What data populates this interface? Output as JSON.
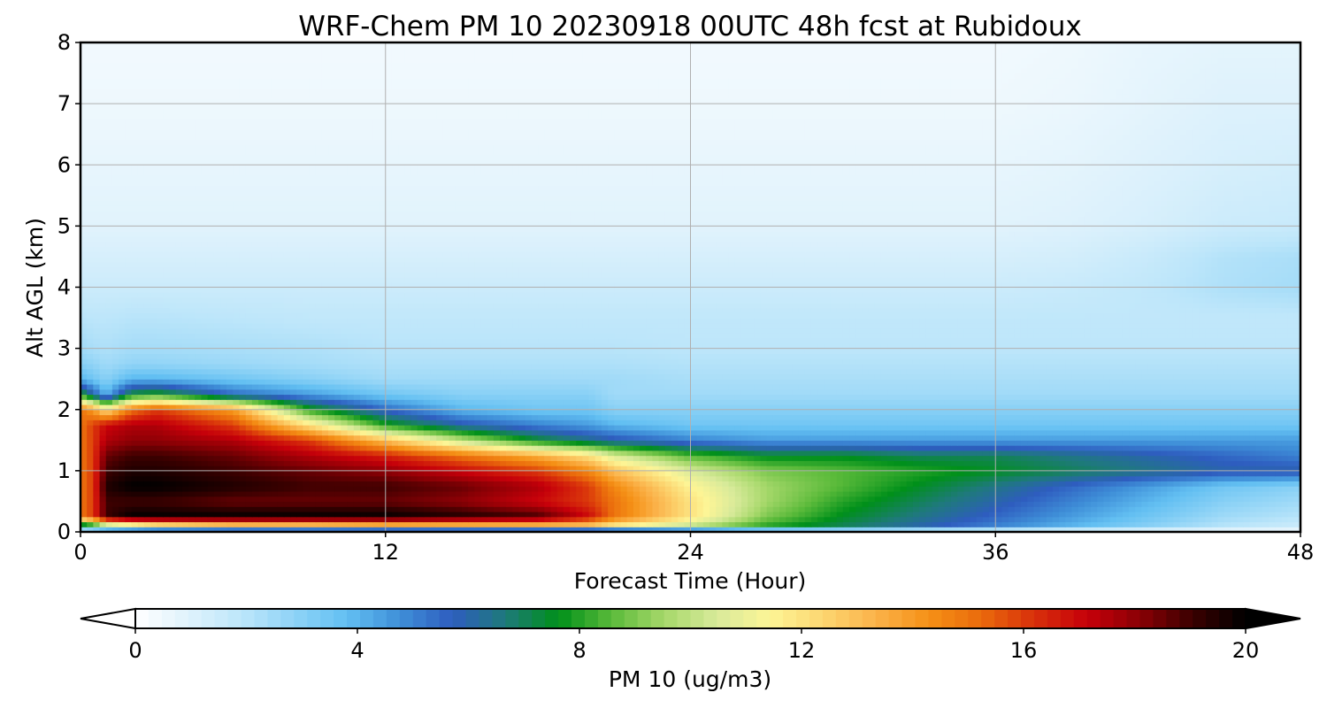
{
  "chart_data": {
    "type": "heatmap",
    "title": "WRF-Chem PM 10  20230918 00UTC 48h fcst at Rubidoux",
    "xlabel": "Forecast Time (Hour)",
    "ylabel": "Alt AGL (km)",
    "xlim": [
      0,
      48
    ],
    "ylim": [
      0,
      8
    ],
    "x_ticks": [
      0,
      12,
      24,
      36,
      48
    ],
    "y_ticks": [
      0,
      1,
      2,
      3,
      4,
      5,
      6,
      7,
      8
    ],
    "grid": true,
    "colorbar": {
      "label": "PM 10  (ug/m3)",
      "range": [
        0,
        20
      ],
      "ticks": [
        0,
        4,
        8,
        12,
        16,
        20
      ],
      "extend": "both",
      "colors": [
        "#ffffff",
        "#dff2fc",
        "#bde6fa",
        "#8fd3f6",
        "#62bff2",
        "#3f8fd8",
        "#2e5dbf",
        "#1e7a7a",
        "#00901a",
        "#5aba3a",
        "#a6d86a",
        "#d8ea9a",
        "#fdf596",
        "#fcd671",
        "#fbb24a",
        "#f59116",
        "#ea6a0c",
        "#d8300b",
        "#c6000a",
        "#8a0005",
        "#3a0000",
        "#000000"
      ]
    },
    "field": {
      "x": [
        0,
        0.5,
        1,
        2,
        3,
        6,
        9,
        12,
        15,
        18,
        20,
        21,
        24,
        27,
        30,
        33,
        36,
        39,
        42,
        45,
        48
      ],
      "y": [
        0,
        0.1,
        0.25,
        0.5,
        0.75,
        1,
        1.25,
        1.5,
        1.75,
        2,
        2.25,
        2.5,
        2.75,
        3,
        3.5,
        4,
        4.5,
        5,
        6,
        7,
        8
      ],
      "values_ug_m3": [
        [
          0.3,
          0.3,
          0.3,
          0.3,
          0.3,
          0.3,
          0.3,
          0.3,
          0.3,
          0.3,
          0.3,
          0.3,
          0.3,
          0.3,
          0.3,
          0.3,
          0.3,
          0.3,
          0.3,
          0.3,
          0.3
        ],
        [
          6,
          7,
          9,
          10,
          11,
          12,
          12,
          12.5,
          12.5,
          12.5,
          12.5,
          11.5,
          10,
          8,
          7,
          6,
          5,
          4,
          3,
          2,
          1.5
        ],
        [
          15,
          16,
          19,
          20,
          20,
          20,
          20,
          20,
          19.5,
          19,
          17,
          15,
          12,
          9,
          7.5,
          6.5,
          5.5,
          4.5,
          3.5,
          2.5,
          2
        ],
        [
          15,
          16,
          19,
          19,
          19,
          18.5,
          18.5,
          18.5,
          18,
          17,
          16,
          15,
          12,
          9.5,
          8,
          7,
          6,
          5,
          4,
          3,
          2.5
        ],
        [
          15,
          16,
          19.5,
          20,
          20,
          19.5,
          19,
          19,
          18.5,
          17.5,
          16,
          14.5,
          11.5,
          9.5,
          8.5,
          7.5,
          6.5,
          5.5,
          4.5,
          3.5,
          3
        ],
        [
          15,
          16,
          19,
          19.5,
          19.5,
          19,
          18.5,
          18,
          17,
          16,
          14.5,
          13,
          10.5,
          9,
          8.5,
          8,
          7.5,
          7,
          6.5,
          6,
          6
        ],
        [
          15,
          16,
          18.5,
          19,
          19,
          18.5,
          17.5,
          16.5,
          15,
          13.5,
          12,
          10.5,
          8.5,
          7.5,
          7.5,
          7,
          7,
          6.5,
          6,
          5.5,
          5
        ],
        [
          15,
          16,
          17.5,
          18,
          18,
          17.5,
          16,
          13,
          10,
          7.5,
          6.5,
          6,
          5,
          4.5,
          4.5,
          4.5,
          4.5,
          4.5,
          4.5,
          4.5,
          4.5
        ],
        [
          15,
          16,
          17,
          17.5,
          17.5,
          16,
          12,
          8,
          6,
          5,
          4.5,
          4,
          3.5,
          3.5,
          3.5,
          3.5,
          3.5,
          3.5,
          3.5,
          3.5,
          3.5
        ],
        [
          15,
          14,
          12,
          15,
          16,
          14,
          8,
          5.5,
          4,
          3.5,
          3.5,
          3,
          3,
          3,
          3,
          3,
          3,
          3,
          3,
          3,
          3
        ],
        [
          8,
          6,
          4,
          7.5,
          8,
          5.5,
          4.5,
          3.5,
          3,
          3,
          3,
          2.5,
          2.5,
          2.5,
          2.5,
          2.5,
          2.5,
          2.5,
          2.5,
          2.5,
          2.5
        ],
        [
          4,
          3.5,
          3,
          4,
          4,
          3.5,
          3,
          2.5,
          2.5,
          2.5,
          2.5,
          2.5,
          2.3,
          2.3,
          2.3,
          2.3,
          2.3,
          2.3,
          2.3,
          2.3,
          2.3
        ],
        [
          3,
          2.8,
          2.5,
          2.8,
          2.8,
          2.6,
          2.4,
          2.2,
          2.2,
          2.2,
          2.2,
          2.2,
          2.1,
          2.1,
          2.1,
          2.1,
          2.1,
          2.1,
          2.1,
          2.1,
          2.1
        ],
        [
          2.5,
          2.3,
          2.2,
          2.4,
          2.4,
          2.3,
          2.2,
          2,
          2,
          2,
          2,
          2,
          1.9,
          1.9,
          1.9,
          1.9,
          1.9,
          1.9,
          1.9,
          1.9,
          1.9
        ],
        [
          2,
          1.9,
          1.9,
          2,
          2,
          1.9,
          1.8,
          1.8,
          1.8,
          1.8,
          1.8,
          1.8,
          1.8,
          1.8,
          1.8,
          1.8,
          1.8,
          1.8,
          1.8,
          1.8,
          1.8
        ],
        [
          1.5,
          1.5,
          1.5,
          1.5,
          1.5,
          1.5,
          1.5,
          1.5,
          1.5,
          1.5,
          1.5,
          1.5,
          1.5,
          1.5,
          1.5,
          1.5,
          1.5,
          1.6,
          1.8,
          2.2,
          2.4
        ],
        [
          1.2,
          1.2,
          1.2,
          1.2,
          1.2,
          1.2,
          1.2,
          1.2,
          1.2,
          1.2,
          1.2,
          1.2,
          1.2,
          1.2,
          1.2,
          1.2,
          1.2,
          1.3,
          1.6,
          2.1,
          2.3
        ],
        [
          0.9,
          0.9,
          0.9,
          0.9,
          0.9,
          0.9,
          0.9,
          0.9,
          0.9,
          0.9,
          0.9,
          0.9,
          0.9,
          0.9,
          0.9,
          0.9,
          0.9,
          1,
          1.2,
          1.5,
          1.6
        ],
        [
          0.7,
          0.7,
          0.7,
          0.7,
          0.7,
          0.7,
          0.7,
          0.7,
          0.7,
          0.7,
          0.7,
          0.7,
          0.7,
          0.7,
          0.7,
          0.7,
          0.7,
          0.8,
          1,
          1.2,
          1.3
        ],
        [
          0.5,
          0.5,
          0.5,
          0.5,
          0.5,
          0.5,
          0.5,
          0.5,
          0.5,
          0.5,
          0.5,
          0.5,
          0.5,
          0.5,
          0.5,
          0.5,
          0.5,
          0.6,
          0.8,
          1,
          1
        ],
        [
          0.4,
          0.4,
          0.4,
          0.4,
          0.4,
          0.4,
          0.4,
          0.4,
          0.4,
          0.4,
          0.4,
          0.4,
          0.4,
          0.4,
          0.4,
          0.4,
          0.4,
          0.5,
          0.7,
          0.8,
          0.8
        ]
      ]
    }
  }
}
